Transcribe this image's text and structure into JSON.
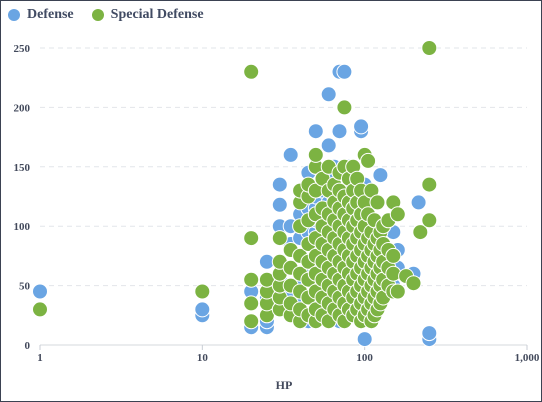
{
  "chart_data": {
    "type": "scatter",
    "title": "",
    "xlabel": "HP",
    "ylabel": "",
    "x_scale": "log",
    "xlim": [
      1,
      1000
    ],
    "ylim": [
      0,
      250
    ],
    "x_ticks": [
      1,
      10,
      100,
      1000
    ],
    "x_tick_labels": [
      "1",
      "10",
      "100",
      "1,000"
    ],
    "y_ticks": [
      0,
      50,
      100,
      150,
      200,
      250
    ],
    "grid": "horizontal dashed",
    "legend": "top-left",
    "series": [
      {
        "name": "Defense",
        "color": "#6aa5e3",
        "points": [
          [
            1,
            45
          ],
          [
            10,
            25
          ],
          [
            10,
            30
          ],
          [
            20,
            15
          ],
          [
            20,
            45
          ],
          [
            25,
            15
          ],
          [
            25,
            20
          ],
          [
            25,
            40
          ],
          [
            25,
            70
          ],
          [
            30,
            55
          ],
          [
            30,
            100
          ],
          [
            30,
            118
          ],
          [
            30,
            135
          ],
          [
            35,
            30
          ],
          [
            35,
            45
          ],
          [
            35,
            85
          ],
          [
            35,
            100
          ],
          [
            35,
            160
          ],
          [
            40,
            35
          ],
          [
            40,
            55
          ],
          [
            40,
            75
          ],
          [
            40,
            90
          ],
          [
            40,
            110
          ],
          [
            40,
            130
          ],
          [
            45,
            20
          ],
          [
            45,
            40
          ],
          [
            45,
            65
          ],
          [
            45,
            95
          ],
          [
            45,
            115
          ],
          [
            45,
            145
          ],
          [
            50,
            25
          ],
          [
            50,
            35
          ],
          [
            50,
            45
          ],
          [
            50,
            55
          ],
          [
            50,
            65
          ],
          [
            50,
            75
          ],
          [
            50,
            85
          ],
          [
            50,
            95
          ],
          [
            50,
            105
          ],
          [
            50,
            115
          ],
          [
            50,
            125
          ],
          [
            50,
            150
          ],
          [
            50,
            180
          ],
          [
            55,
            30
          ],
          [
            55,
            50
          ],
          [
            55,
            70
          ],
          [
            55,
            90
          ],
          [
            55,
            110
          ],
          [
            55,
            130
          ],
          [
            55,
            140
          ],
          [
            60,
            25
          ],
          [
            60,
            40
          ],
          [
            60,
            60
          ],
          [
            60,
            80
          ],
          [
            60,
            100
          ],
          [
            60,
            120
          ],
          [
            60,
            140
          ],
          [
            60,
            168
          ],
          [
            60,
            211
          ],
          [
            65,
            30
          ],
          [
            65,
            45
          ],
          [
            65,
            65
          ],
          [
            65,
            85
          ],
          [
            65,
            105
          ],
          [
            65,
            125
          ],
          [
            65,
            150
          ],
          [
            70,
            20
          ],
          [
            70,
            35
          ],
          [
            70,
            50
          ],
          [
            70,
            70
          ],
          [
            70,
            90
          ],
          [
            70,
            110
          ],
          [
            70,
            130
          ],
          [
            70,
            180
          ],
          [
            70,
            230
          ],
          [
            75,
            40
          ],
          [
            75,
            60
          ],
          [
            75,
            80
          ],
          [
            75,
            100
          ],
          [
            75,
            120
          ],
          [
            75,
            200
          ],
          [
            75,
            230
          ],
          [
            80,
            30
          ],
          [
            80,
            50
          ],
          [
            80,
            70
          ],
          [
            80,
            90
          ],
          [
            80,
            110
          ],
          [
            80,
            130
          ],
          [
            80,
            150
          ],
          [
            85,
            25
          ],
          [
            85,
            45
          ],
          [
            85,
            65
          ],
          [
            85,
            85
          ],
          [
            85,
            105
          ],
          [
            85,
            125
          ],
          [
            90,
            30
          ],
          [
            90,
            50
          ],
          [
            90,
            70
          ],
          [
            90,
            90
          ],
          [
            90,
            110
          ],
          [
            95,
            40
          ],
          [
            95,
            60
          ],
          [
            95,
            80
          ],
          [
            95,
            100
          ],
          [
            95,
            180
          ],
          [
            95,
            184
          ],
          [
            100,
            5
          ],
          [
            100,
            35
          ],
          [
            100,
            55
          ],
          [
            100,
            75
          ],
          [
            100,
            95
          ],
          [
            100,
            115
          ],
          [
            100,
            135
          ],
          [
            105,
            30
          ],
          [
            105,
            50
          ],
          [
            105,
            70
          ],
          [
            105,
            90
          ],
          [
            110,
            20
          ],
          [
            110,
            45
          ],
          [
            110,
            65
          ],
          [
            110,
            85
          ],
          [
            115,
            60
          ],
          [
            115,
            80
          ],
          [
            115,
            100
          ],
          [
            120,
            40
          ],
          [
            120,
            70
          ],
          [
            125,
            90
          ],
          [
            125,
            143
          ],
          [
            130,
            55
          ],
          [
            130,
            85
          ],
          [
            140,
            60
          ],
          [
            150,
            50
          ],
          [
            150,
            95
          ],
          [
            160,
            80
          ],
          [
            160,
            65
          ],
          [
            200,
            60
          ],
          [
            215,
            120
          ],
          [
            250,
            5
          ],
          [
            250,
            10
          ]
        ]
      },
      {
        "name": "Special Defense",
        "color": "#7cb342",
        "points": [
          [
            1,
            30
          ],
          [
            10,
            45
          ],
          [
            20,
            20
          ],
          [
            20,
            35
          ],
          [
            20,
            55
          ],
          [
            20,
            90
          ],
          [
            20,
            230
          ],
          [
            25,
            25
          ],
          [
            25,
            35
          ],
          [
            25,
            45
          ],
          [
            25,
            55
          ],
          [
            30,
            30
          ],
          [
            30,
            40
          ],
          [
            30,
            50
          ],
          [
            30,
            60
          ],
          [
            30,
            70
          ],
          [
            30,
            90
          ],
          [
            35,
            25
          ],
          [
            35,
            35
          ],
          [
            35,
            50
          ],
          [
            35,
            65
          ],
          [
            35,
            80
          ],
          [
            40,
            20
          ],
          [
            40,
            30
          ],
          [
            40,
            45
          ],
          [
            40,
            60
          ],
          [
            40,
            75
          ],
          [
            40,
            100
          ],
          [
            40,
            120
          ],
          [
            40,
            130
          ],
          [
            45,
            25
          ],
          [
            45,
            40
          ],
          [
            45,
            55
          ],
          [
            45,
            70
          ],
          [
            45,
            85
          ],
          [
            45,
            105
          ],
          [
            45,
            125
          ],
          [
            45,
            135
          ],
          [
            50,
            20
          ],
          [
            50,
            30
          ],
          [
            50,
            45
          ],
          [
            50,
            60
          ],
          [
            50,
            75
          ],
          [
            50,
            90
          ],
          [
            50,
            110
          ],
          [
            50,
            130
          ],
          [
            50,
            150
          ],
          [
            50,
            160
          ],
          [
            55,
            25
          ],
          [
            55,
            40
          ],
          [
            55,
            55
          ],
          [
            55,
            70
          ],
          [
            55,
            85
          ],
          [
            55,
            100
          ],
          [
            55,
            115
          ],
          [
            55,
            140
          ],
          [
            60,
            20
          ],
          [
            60,
            35
          ],
          [
            60,
            50
          ],
          [
            60,
            65
          ],
          [
            60,
            80
          ],
          [
            60,
            95
          ],
          [
            60,
            110
          ],
          [
            60,
            130
          ],
          [
            60,
            150
          ],
          [
            65,
            30
          ],
          [
            65,
            45
          ],
          [
            65,
            60
          ],
          [
            65,
            75
          ],
          [
            65,
            90
          ],
          [
            65,
            105
          ],
          [
            65,
            120
          ],
          [
            65,
            135
          ],
          [
            70,
            25
          ],
          [
            70,
            40
          ],
          [
            70,
            55
          ],
          [
            70,
            70
          ],
          [
            70,
            85
          ],
          [
            70,
            100
          ],
          [
            70,
            115
          ],
          [
            70,
            130
          ],
          [
            70,
            145
          ],
          [
            75,
            20
          ],
          [
            75,
            35
          ],
          [
            75,
            50
          ],
          [
            75,
            65
          ],
          [
            75,
            80
          ],
          [
            75,
            95
          ],
          [
            75,
            110
          ],
          [
            75,
            125
          ],
          [
            75,
            150
          ],
          [
            75,
            200
          ],
          [
            80,
            30
          ],
          [
            80,
            45
          ],
          [
            80,
            60
          ],
          [
            80,
            75
          ],
          [
            80,
            90
          ],
          [
            80,
            105
          ],
          [
            80,
            120
          ],
          [
            80,
            140
          ],
          [
            85,
            25
          ],
          [
            85,
            40
          ],
          [
            85,
            55
          ],
          [
            85,
            70
          ],
          [
            85,
            85
          ],
          [
            85,
            100
          ],
          [
            85,
            115
          ],
          [
            85,
            130
          ],
          [
            85,
            150
          ],
          [
            90,
            30
          ],
          [
            90,
            45
          ],
          [
            90,
            60
          ],
          [
            90,
            75
          ],
          [
            90,
            90
          ],
          [
            90,
            105
          ],
          [
            90,
            120
          ],
          [
            90,
            140
          ],
          [
            95,
            20
          ],
          [
            95,
            35
          ],
          [
            95,
            50
          ],
          [
            95,
            65
          ],
          [
            95,
            80
          ],
          [
            95,
            95
          ],
          [
            95,
            110
          ],
          [
            95,
            130
          ],
          [
            100,
            25
          ],
          [
            100,
            40
          ],
          [
            100,
            55
          ],
          [
            100,
            70
          ],
          [
            100,
            85
          ],
          [
            100,
            100
          ],
          [
            100,
            120
          ],
          [
            100,
            160
          ],
          [
            105,
            30
          ],
          [
            105,
            45
          ],
          [
            105,
            60
          ],
          [
            105,
            75
          ],
          [
            105,
            90
          ],
          [
            105,
            110
          ],
          [
            105,
            155
          ],
          [
            110,
            20
          ],
          [
            110,
            35
          ],
          [
            110,
            50
          ],
          [
            110,
            65
          ],
          [
            110,
            80
          ],
          [
            110,
            95
          ],
          [
            110,
            130
          ],
          [
            115,
            25
          ],
          [
            115,
            40
          ],
          [
            115,
            55
          ],
          [
            115,
            70
          ],
          [
            115,
            85
          ],
          [
            115,
            105
          ],
          [
            120,
            30
          ],
          [
            120,
            45
          ],
          [
            120,
            60
          ],
          [
            120,
            75
          ],
          [
            120,
            90
          ],
          [
            120,
            120
          ],
          [
            125,
            35
          ],
          [
            125,
            50
          ],
          [
            125,
            65
          ],
          [
            125,
            80
          ],
          [
            125,
            95
          ],
          [
            130,
            40
          ],
          [
            130,
            55
          ],
          [
            130,
            70
          ],
          [
            130,
            85
          ],
          [
            130,
            100
          ],
          [
            140,
            50
          ],
          [
            140,
            65
          ],
          [
            140,
            80
          ],
          [
            140,
            105
          ],
          [
            150,
            45
          ],
          [
            150,
            60
          ],
          [
            150,
            75
          ],
          [
            150,
            120
          ],
          [
            160,
            45
          ],
          [
            160,
            110
          ],
          [
            180,
            58
          ],
          [
            200,
            52
          ],
          [
            220,
            95
          ],
          [
            250,
            250
          ],
          [
            250,
            135
          ],
          [
            250,
            105
          ]
        ]
      }
    ]
  }
}
